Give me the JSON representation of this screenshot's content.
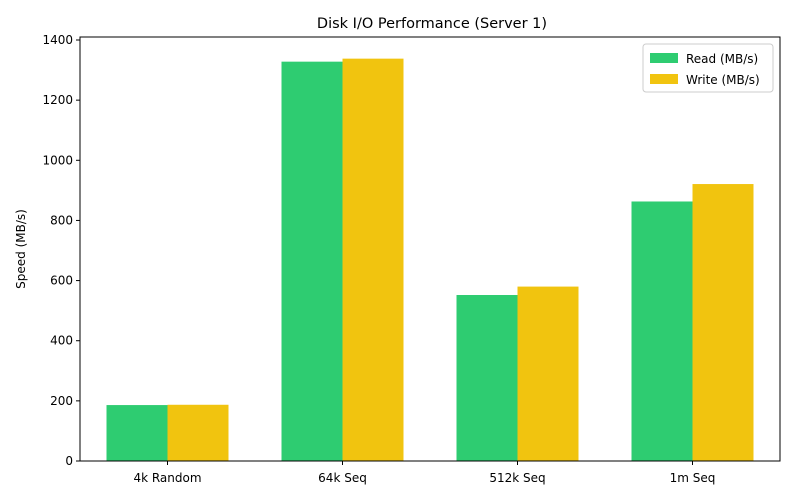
{
  "chart_data": {
    "type": "bar",
    "title": "Disk I/O Performance (Server 1)",
    "xlabel": "",
    "ylabel": "Speed (MB/s)",
    "categories": [
      "4k Random",
      "64k Seq",
      "512k Seq",
      "1m Seq"
    ],
    "series": [
      {
        "name": "Read (MB/s)",
        "color": "#2ecc71",
        "values": [
          186,
          1328,
          552,
          863
        ]
      },
      {
        "name": "Write (MB/s)",
        "color": "#f1c40f",
        "values": [
          187,
          1338,
          580,
          921
        ]
      }
    ],
    "ylim": [
      0,
      1410
    ],
    "yticks": [
      0,
      200,
      400,
      600,
      800,
      1000,
      1200,
      1400
    ],
    "grid": false,
    "legend_position": "top-right"
  }
}
